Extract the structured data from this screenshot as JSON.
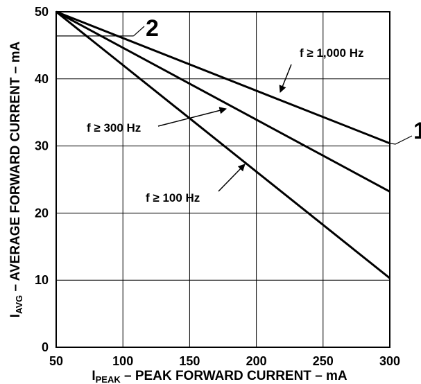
{
  "chart_data": {
    "type": "line",
    "xlabel_main": "I",
    "xlabel_sub": "PEAK",
    "xlabel_rest": " – PEAK FORWARD CURRENT – mA",
    "ylabel_main": "I",
    "ylabel_sub": "AVG",
    "ylabel_rest": " – AVERAGE FORWARD CURRENT – mA",
    "xlim": [
      50,
      300
    ],
    "ylim": [
      0,
      50
    ],
    "xticks": [
      50,
      100,
      150,
      200,
      250,
      300
    ],
    "yticks": [
      0,
      10,
      20,
      30,
      40,
      50
    ],
    "grid": true,
    "series": [
      {
        "name": "f ≥ 1,000 Hz",
        "x": [
          50,
          300
        ],
        "y": [
          50,
          30.4
        ]
      },
      {
        "name": "f ≥ 300 Hz",
        "x": [
          50,
          300
        ],
        "y": [
          50,
          23.2
        ]
      },
      {
        "name": "f ≥ 100 Hz",
        "x": [
          50,
          300
        ],
        "y": [
          50,
          10.3
        ]
      }
    ],
    "annotations": [
      {
        "text": "1",
        "x": 300,
        "y": 30.4
      },
      {
        "text": "2",
        "x": 108,
        "y": 46.4
      }
    ],
    "reference_line": {
      "x": [
        50,
        108
      ],
      "y": [
        46.4,
        46.4
      ]
    }
  }
}
